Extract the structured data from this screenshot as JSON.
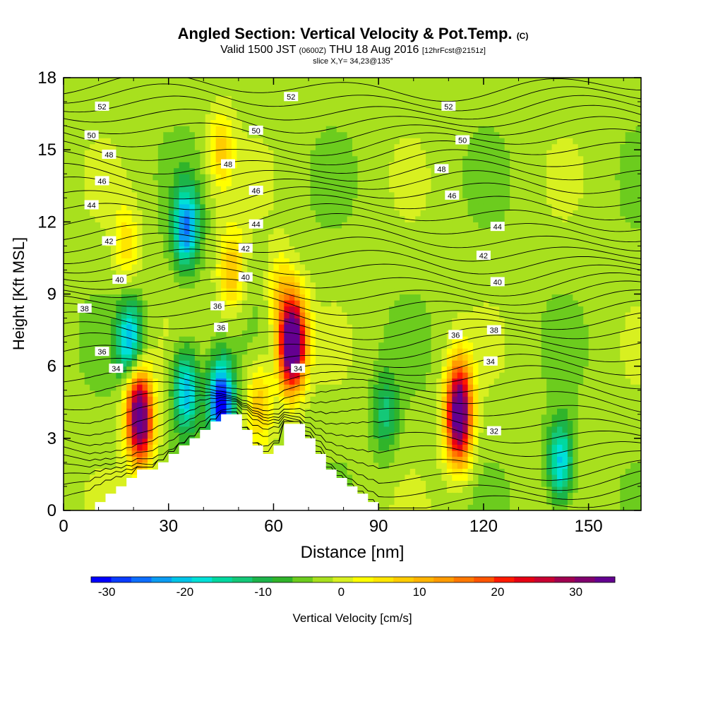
{
  "title": {
    "main": "Angled Section: Vertical Velocity & Pot.Temp.",
    "copyright": "(C)",
    "valid_prefix": "Valid 1500 JST",
    "valid_z": "(0600Z)",
    "valid_date": "THU 18 Aug 2016",
    "valid_fcst": "[12hrFcst@2151z]",
    "slice": "slice X,Y= 34,23@135°"
  },
  "chart_data": {
    "type": "heatmap",
    "xlabel": "Distance [nm]",
    "ylabel": "Height [Kft MSL]",
    "xlim": [
      0,
      165
    ],
    "ylim": [
      0,
      18
    ],
    "x_ticks": [
      0,
      30,
      60,
      90,
      120,
      150
    ],
    "y_ticks": [
      0,
      3,
      6,
      9,
      12,
      15,
      18
    ],
    "colorbar": {
      "label": "Vertical Velocity [cm/s]",
      "ticks": [
        -30,
        -20,
        -10,
        0,
        10,
        20,
        30
      ],
      "range": [
        -32,
        35
      ],
      "colors": [
        "#0000ff",
        "#0a3cff",
        "#0d6eff",
        "#0b9cf2",
        "#00c4e8",
        "#00e0d8",
        "#00d8a0",
        "#14c878",
        "#1cb44a",
        "#30b42a",
        "#6ccc1e",
        "#a8e01e",
        "#d8f020",
        "#ffff00",
        "#ffe600",
        "#ffcc00",
        "#ffb400",
        "#ff9b00",
        "#ff7800",
        "#ff5500",
        "#ff1a00",
        "#e60014",
        "#c80032",
        "#a00050",
        "#80006e",
        "#640090"
      ]
    },
    "theta_label_values": [
      32,
      34,
      36,
      38,
      40,
      42,
      44,
      46,
      48,
      50,
      52
    ],
    "terrain_profile_kft": [
      [
        0,
        0
      ],
      [
        9,
        0
      ],
      [
        9,
        0.35
      ],
      [
        12,
        0.35
      ],
      [
        12,
        0.7
      ],
      [
        15,
        0.7
      ],
      [
        15,
        1.0
      ],
      [
        18,
        1.0
      ],
      [
        18,
        1.35
      ],
      [
        21,
        1.35
      ],
      [
        21,
        1.7
      ],
      [
        27,
        1.7
      ],
      [
        27,
        2.0
      ],
      [
        30,
        2.0
      ],
      [
        30,
        2.35
      ],
      [
        33,
        2.35
      ],
      [
        33,
        2.7
      ],
      [
        36,
        2.7
      ],
      [
        36,
        3.0
      ],
      [
        39,
        3.0
      ],
      [
        39,
        3.35
      ],
      [
        42,
        3.35
      ],
      [
        42,
        3.7
      ],
      [
        45,
        3.7
      ],
      [
        45,
        4.0
      ],
      [
        51,
        4.0
      ],
      [
        51,
        3.35
      ],
      [
        54,
        3.35
      ],
      [
        54,
        2.7
      ],
      [
        57,
        2.7
      ],
      [
        57,
        2.35
      ],
      [
        60,
        2.35
      ],
      [
        60,
        2.7
      ],
      [
        63,
        2.7
      ],
      [
        63,
        3.6
      ],
      [
        69,
        3.6
      ],
      [
        69,
        3.0
      ],
      [
        72,
        3.0
      ],
      [
        72,
        2.35
      ],
      [
        75,
        2.35
      ],
      [
        75,
        1.7
      ],
      [
        78,
        1.7
      ],
      [
        78,
        1.35
      ],
      [
        81,
        1.35
      ],
      [
        81,
        1.0
      ],
      [
        84,
        1.0
      ],
      [
        84,
        0.7
      ],
      [
        87,
        0.7
      ],
      [
        87,
        0.35
      ],
      [
        90,
        0.35
      ],
      [
        90,
        0
      ],
      [
        165,
        0
      ]
    ],
    "vertical_velocity_cells": [
      {
        "x": 22,
        "y": 3.5,
        "value": 30
      },
      {
        "x": 21,
        "y": 4.8,
        "value": 18
      },
      {
        "x": 19,
        "y": 7.0,
        "value": -20
      },
      {
        "x": 35,
        "y": 5.0,
        "value": -20
      },
      {
        "x": 35,
        "y": 11.8,
        "value": -22
      },
      {
        "x": 45,
        "y": 4.5,
        "value": -30
      },
      {
        "x": 65,
        "y": 6.5,
        "value": 30
      },
      {
        "x": 66,
        "y": 7.5,
        "value": 22
      },
      {
        "x": 56,
        "y": 4.5,
        "value": 12
      },
      {
        "x": 113,
        "y": 3.5,
        "value": 30
      },
      {
        "x": 113,
        "y": 5.0,
        "value": 20
      },
      {
        "x": 142,
        "y": 2.0,
        "value": -18
      },
      {
        "x": 92,
        "y": 4.0,
        "value": -10
      },
      {
        "x": 45,
        "y": 15.0,
        "value": 10
      },
      {
        "x": 48,
        "y": 10.0,
        "value": 12
      },
      {
        "x": 62,
        "y": 9.0,
        "value": 10
      },
      {
        "x": 18,
        "y": 11.0,
        "value": 8
      }
    ]
  }
}
